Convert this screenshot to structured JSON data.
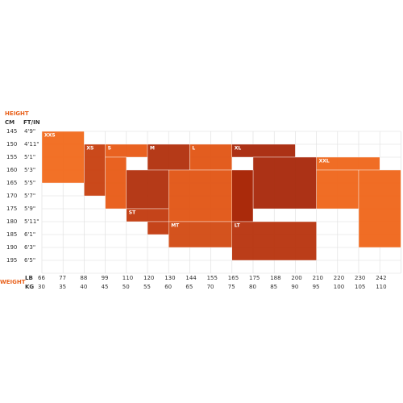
{
  "chart_data": {
    "type": "size-grid",
    "height_title": "HEIGHT",
    "height_cm_label": "CM",
    "height_ft_label": "FT/IN",
    "weight_title": "WEIGHT",
    "weight_lb_label": "LB",
    "weight_kg_label": "KG",
    "cm": [
      145,
      150,
      155,
      160,
      165,
      170,
      175,
      180,
      185,
      190,
      195
    ],
    "ft": [
      "4'9\"",
      "4'11\"",
      "5'1\"",
      "5'3\"",
      "5'5\"",
      "5'7\"",
      "5'9\"",
      "5'11\"",
      "6'1\"",
      "6'3\"",
      "6'5\""
    ],
    "lb": [
      66,
      77,
      88,
      99,
      110,
      120,
      130,
      144,
      155,
      165,
      175,
      188,
      200,
      210,
      220,
      230,
      242
    ],
    "kg": [
      30,
      35,
      40,
      45,
      50,
      55,
      60,
      65,
      70,
      75,
      80,
      85,
      90,
      95,
      100,
      105,
      110
    ],
    "weight_lim": [
      66,
      253
    ],
    "height_lim": [
      145,
      200
    ],
    "sizes": [
      {
        "name": "XXS",
        "color": "#f26a1c",
        "rects": [
          [
            66,
            88,
            145,
            165
          ]
        ]
      },
      {
        "name": "XS",
        "color": "#c8400f",
        "rects": [
          [
            88,
            99,
            150,
            170
          ]
        ]
      },
      {
        "name": "S",
        "color": "#e85a16",
        "rects": [
          [
            99,
            120,
            150,
            155
          ],
          [
            99,
            110,
            155,
            175
          ]
        ]
      },
      {
        "name": "M",
        "color": "#b2300c",
        "rects": [
          [
            120,
            144,
            150,
            160
          ],
          [
            110,
            130,
            160,
            175
          ]
        ]
      },
      {
        "name": "ST",
        "color": "#c23a0e",
        "rects": [
          [
            110,
            130,
            175,
            180
          ],
          [
            120,
            130,
            180,
            185
          ]
        ]
      },
      {
        "name": "L",
        "color": "#e25514",
        "rects": [
          [
            144,
            165,
            150,
            160
          ],
          [
            130,
            175,
            160,
            180
          ]
        ]
      },
      {
        "name": "MT",
        "color": "#d24a12",
        "rects": [
          [
            130,
            165,
            180,
            190
          ]
        ]
      },
      {
        "name": "XL",
        "color": "#a8280a",
        "rects": [
          [
            165,
            200,
            150,
            155
          ],
          [
            175,
            210,
            155,
            175
          ],
          [
            165,
            175,
            160,
            180
          ]
        ]
      },
      {
        "name": "LT",
        "color": "#b8330d",
        "rects": [
          [
            165,
            210,
            180,
            195
          ]
        ]
      },
      {
        "name": "XXL",
        "color": "#f0661a",
        "rects": [
          [
            210,
            242,
            155,
            160
          ],
          [
            210,
            230,
            160,
            175
          ],
          [
            230,
            253,
            160,
            190
          ]
        ]
      }
    ]
  }
}
